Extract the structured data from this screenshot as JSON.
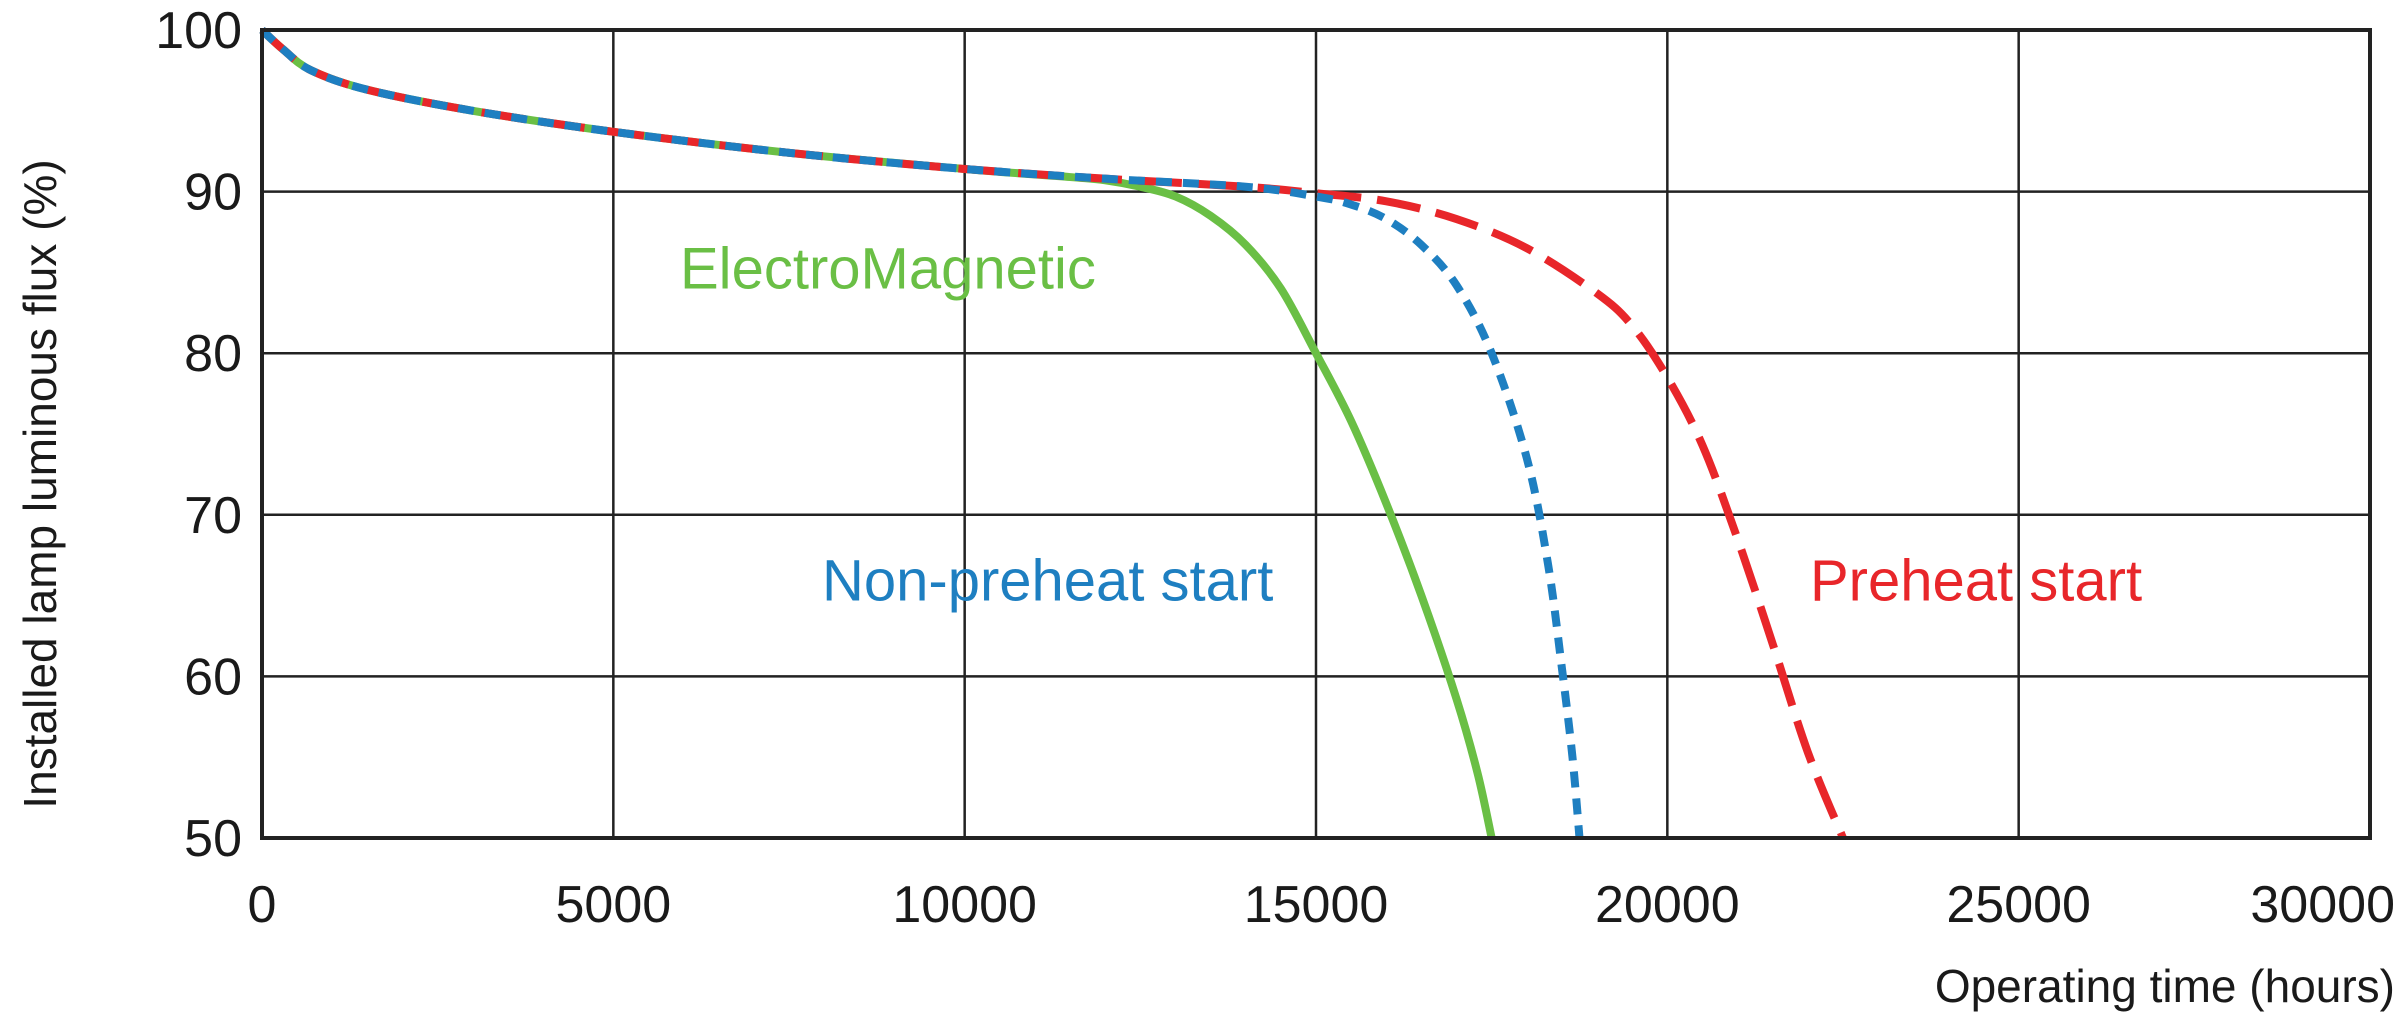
{
  "chart_data": {
    "type": "line",
    "title": "",
    "xlabel": "Operating time (hours)",
    "ylabel": "Installed lamp luminous flux  (%)",
    "xlim": [
      0,
      30000
    ],
    "ylim": [
      50,
      100
    ],
    "x_ticks": [
      "0",
      "5000",
      "10000",
      "15000",
      "20000",
      "25000",
      "30000"
    ],
    "y_ticks": [
      "100",
      "90",
      "80",
      "70",
      "60",
      "50"
    ],
    "grid": true,
    "series": [
      {
        "name": "ElectroMagnetic",
        "color": "#6abf45",
        "style": "solid",
        "points": [
          [
            0,
            100
          ],
          [
            300,
            98.8
          ],
          [
            700,
            97.5
          ],
          [
            1500,
            96.3
          ],
          [
            3000,
            95
          ],
          [
            5000,
            93.7
          ],
          [
            7500,
            92.4
          ],
          [
            10000,
            91.4
          ],
          [
            11500,
            90.9
          ],
          [
            12000,
            90.7
          ],
          [
            12500,
            90.3
          ],
          [
            13000,
            89.7
          ],
          [
            13500,
            88.5
          ],
          [
            14000,
            86.7
          ],
          [
            14500,
            84
          ],
          [
            15000,
            80
          ],
          [
            15500,
            75.8
          ],
          [
            16000,
            70.7
          ],
          [
            16500,
            65
          ],
          [
            17000,
            58.6
          ],
          [
            17300,
            54
          ],
          [
            17500,
            50
          ]
        ]
      },
      {
        "name": "Non-preheat start",
        "color": "#1e7fc1",
        "style": "dashed",
        "points": [
          [
            0,
            100
          ],
          [
            300,
            98.8
          ],
          [
            700,
            97.5
          ],
          [
            1500,
            96.3
          ],
          [
            3000,
            95
          ],
          [
            5000,
            93.7
          ],
          [
            7500,
            92.4
          ],
          [
            10000,
            91.4
          ],
          [
            12000,
            90.8
          ],
          [
            14000,
            90.3
          ],
          [
            15000,
            89.7
          ],
          [
            15500,
            89.2
          ],
          [
            16000,
            88.3
          ],
          [
            16500,
            86.7
          ],
          [
            17000,
            84.2
          ],
          [
            17500,
            80
          ],
          [
            18000,
            73.5
          ],
          [
            18300,
            67
          ],
          [
            18500,
            60.5
          ],
          [
            18650,
            55
          ],
          [
            18750,
            50
          ]
        ]
      },
      {
        "name": "Preheat start",
        "color": "#e8262a",
        "style": "longdash",
        "points": [
          [
            0,
            100
          ],
          [
            300,
            98.8
          ],
          [
            700,
            97.5
          ],
          [
            1500,
            96.3
          ],
          [
            3000,
            95
          ],
          [
            5000,
            93.7
          ],
          [
            7500,
            92.4
          ],
          [
            10000,
            91.4
          ],
          [
            12000,
            90.8
          ],
          [
            14000,
            90.3
          ],
          [
            15000,
            89.9
          ],
          [
            16000,
            89.4
          ],
          [
            17000,
            88.3
          ],
          [
            18000,
            86.5
          ],
          [
            19000,
            83.7
          ],
          [
            19500,
            81.7
          ],
          [
            20000,
            78.5
          ],
          [
            20500,
            74.3
          ],
          [
            21000,
            68.5
          ],
          [
            21500,
            62
          ],
          [
            22000,
            55.3
          ],
          [
            22500,
            50
          ]
        ]
      }
    ],
    "annotations": [
      {
        "text": "ElectroMagnetic",
        "color": "#6abf45",
        "at": [
          9800,
          84
        ]
      },
      {
        "text": "Non-preheat start",
        "color": "#1e7fc1",
        "at": [
          8200,
          64.7
        ]
      },
      {
        "text": "Preheat start",
        "color": "#e8262a",
        "at": [
          22500,
          64.7
        ]
      }
    ]
  }
}
